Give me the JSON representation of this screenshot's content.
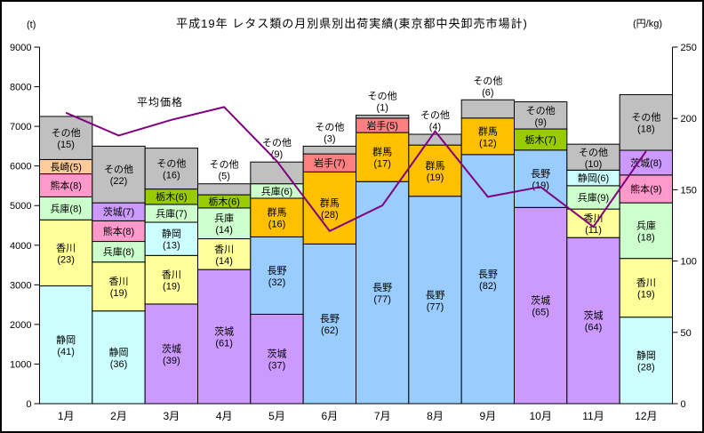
{
  "title": "平成19年 レタス類の月別県別出荷実績(東京都中央卸売市場計)",
  "left_axis_unit": "(t)",
  "right_axis_unit": "(円/kg)",
  "chart_data": {
    "type": "stacked-bar-with-line",
    "categories": [
      "1月",
      "2月",
      "3月",
      "4月",
      "5月",
      "6月",
      "7月",
      "8月",
      "9月",
      "10月",
      "11月",
      "12月"
    ],
    "left_axis": {
      "label": "(t)",
      "min": 0,
      "max": 9000,
      "ticks": [
        0,
        1000,
        2000,
        3000,
        4000,
        5000,
        6000,
        7000,
        8000,
        9000
      ]
    },
    "right_axis": {
      "label": "(円/kg)",
      "min": 0,
      "max": 250,
      "ticks": [
        0,
        50,
        100,
        150,
        200,
        250
      ]
    },
    "grid": false,
    "legend": "none",
    "bars_note": "segments listed bottom-to-top, value in parentheses = share (%) of monthly total",
    "bars": [
      {
        "month": "1月",
        "total_t": 7250,
        "segments": [
          {
            "name": "静岡",
            "pct": 41
          },
          {
            "name": "香川",
            "pct": 23
          },
          {
            "name": "兵庫",
            "pct": 8
          },
          {
            "name": "熊本",
            "pct": 8
          },
          {
            "name": "長崎",
            "pct": 5
          },
          {
            "name": "その他",
            "pct": 15
          }
        ]
      },
      {
        "month": "2月",
        "total_t": 6500,
        "segments": [
          {
            "name": "静岡",
            "pct": 36
          },
          {
            "name": "香川",
            "pct": 19
          },
          {
            "name": "兵庫",
            "pct": 8
          },
          {
            "name": "熊本",
            "pct": 8
          },
          {
            "name": "茨城",
            "pct": 7
          },
          {
            "name": "その他",
            "pct": 22
          }
        ]
      },
      {
        "month": "3月",
        "total_t": 6450,
        "segments": [
          {
            "name": "茨城",
            "pct": 39
          },
          {
            "name": "香川",
            "pct": 19
          },
          {
            "name": "静岡",
            "pct": 13
          },
          {
            "name": "兵庫",
            "pct": 7
          },
          {
            "name": "栃木",
            "pct": 6
          },
          {
            "name": "その他",
            "pct": 16
          }
        ]
      },
      {
        "month": "4月",
        "total_t": 5550,
        "segments": [
          {
            "name": "茨城",
            "pct": 61
          },
          {
            "name": "香川",
            "pct": 14
          },
          {
            "name": "兵庫",
            "pct": 14
          },
          {
            "name": "栃木",
            "pct": 6
          },
          {
            "name": "その他",
            "pct": 5,
            "label_outside": true
          }
        ]
      },
      {
        "month": "5月",
        "total_t": 6100,
        "segments": [
          {
            "name": "茨城",
            "pct": 37
          },
          {
            "name": "長野",
            "pct": 32
          },
          {
            "name": "群馬",
            "pct": 16
          },
          {
            "name": "兵庫",
            "pct": 6
          },
          {
            "name": "その他",
            "pct": 9,
            "label_outside": true
          }
        ]
      },
      {
        "month": "6月",
        "total_t": 6500,
        "segments": [
          {
            "name": "長野",
            "pct": 62
          },
          {
            "name": "群馬",
            "pct": 28
          },
          {
            "name": "岩手",
            "pct": 7
          },
          {
            "name": "その他",
            "pct": 3,
            "label_outside": true
          }
        ]
      },
      {
        "month": "7月",
        "total_t": 7280,
        "segments": [
          {
            "name": "長野",
            "pct": 77
          },
          {
            "name": "群馬",
            "pct": 17
          },
          {
            "name": "岩手",
            "pct": 5
          },
          {
            "name": "その他",
            "pct": 1,
            "label_outside": true
          }
        ]
      },
      {
        "month": "8月",
        "total_t": 6800,
        "segments": [
          {
            "name": "長野",
            "pct": 77
          },
          {
            "name": "群馬",
            "pct": 19
          },
          {
            "name": "その他",
            "pct": 4,
            "label_outside": true
          }
        ]
      },
      {
        "month": "9月",
        "total_t": 7670,
        "segments": [
          {
            "name": "長野",
            "pct": 82
          },
          {
            "name": "群馬",
            "pct": 12
          },
          {
            "name": "その他",
            "pct": 6,
            "label_outside": true
          }
        ]
      },
      {
        "month": "10月",
        "total_t": 7620,
        "segments": [
          {
            "name": "茨城",
            "pct": 65
          },
          {
            "name": "長野",
            "pct": 19
          },
          {
            "name": "栃木",
            "pct": 7
          },
          {
            "name": "その他",
            "pct": 9
          }
        ]
      },
      {
        "month": "11月",
        "total_t": 6550,
        "segments": [
          {
            "name": "茨城",
            "pct": 64
          },
          {
            "name": "香川",
            "pct": 11
          },
          {
            "name": "兵庫",
            "pct": 9
          },
          {
            "name": "静岡",
            "pct": 6
          },
          {
            "name": "その他",
            "pct": 10
          }
        ]
      },
      {
        "month": "12月",
        "total_t": 7800,
        "segments": [
          {
            "name": "静岡",
            "pct": 28
          },
          {
            "name": "香川",
            "pct": 19
          },
          {
            "name": "兵庫",
            "pct": 18
          },
          {
            "name": "熊本",
            "pct": 9
          },
          {
            "name": "茨城",
            "pct": 8
          },
          {
            "name": "その他",
            "pct": 18
          }
        ]
      }
    ],
    "price_series": {
      "name": "平均価格",
      "unit": "円/kg",
      "values": [
        204,
        188,
        199,
        208,
        170,
        121,
        139,
        191,
        145,
        152,
        124,
        177
      ],
      "color": "#800080"
    },
    "colors": {
      "静岡": "#CCFFFF",
      "香川": "#FFFF99",
      "兵庫": "#CCFFCC",
      "熊本": "#FF99CC",
      "長崎": "#FFCC99",
      "茨城": "#CC99FF",
      "栃木": "#99CC00",
      "群馬": "#FFC000",
      "長野": "#99CCFF",
      "岩手": "#FF8080",
      "その他": "#C0C0C0"
    }
  }
}
